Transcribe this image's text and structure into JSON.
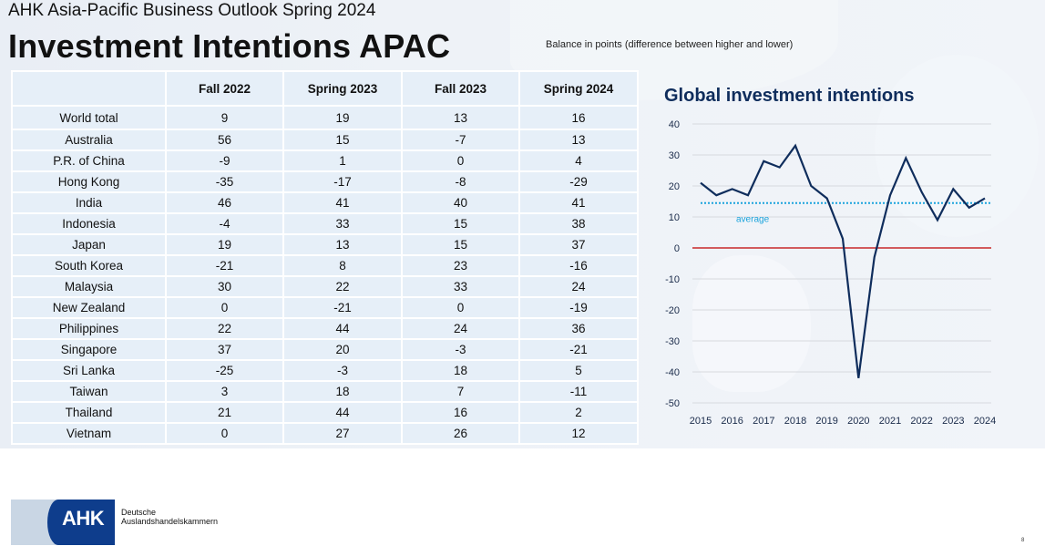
{
  "header": {
    "suptitle": "AHK Asia-Pacific Business Outlook Spring 2024",
    "title": "Investment Intentions APAC",
    "note": "Balance in points (difference between higher and lower)"
  },
  "table": {
    "columns": [
      "",
      "Fall 2022",
      "Spring 2023",
      "Fall 2023",
      "Spring 2024"
    ],
    "rows": [
      {
        "country": "World total",
        "values": [
          "9",
          "19",
          "13",
          "16"
        ]
      },
      {
        "country": "Australia",
        "values": [
          "56",
          "15",
          "-7",
          "13"
        ]
      },
      {
        "country": "P.R. of China",
        "values": [
          "-9",
          "1",
          "0",
          "4"
        ]
      },
      {
        "country": "Hong Kong",
        "values": [
          "-35",
          "-17",
          "-8",
          "-29"
        ]
      },
      {
        "country": "India",
        "values": [
          "46",
          "41",
          "40",
          "41"
        ]
      },
      {
        "country": "Indonesia",
        "values": [
          "-4",
          "33",
          "15",
          "38"
        ]
      },
      {
        "country": "Japan",
        "values": [
          "19",
          "13",
          "15",
          "37"
        ]
      },
      {
        "country": "South Korea",
        "values": [
          "-21",
          "8",
          "23",
          "-16"
        ]
      },
      {
        "country": "Malaysia",
        "values": [
          "30",
          "22",
          "33",
          "24"
        ]
      },
      {
        "country": "New Zealand",
        "values": [
          "0",
          "-21",
          "0",
          "-19"
        ]
      },
      {
        "country": "Philippines",
        "values": [
          "22",
          "44",
          "24",
          "36"
        ]
      },
      {
        "country": "Singapore",
        "values": [
          "37",
          "20",
          "-3",
          "-21"
        ]
      },
      {
        "country": "Sri Lanka",
        "values": [
          "-25",
          "-3",
          "18",
          "5"
        ]
      },
      {
        "country": "Taiwan",
        "values": [
          "3",
          "18",
          "7",
          "-11"
        ]
      },
      {
        "country": "Thailand",
        "values": [
          "21",
          "44",
          "16",
          "2"
        ]
      },
      {
        "country": "Vietnam",
        "values": [
          "0",
          "27",
          "26",
          "12"
        ]
      }
    ]
  },
  "chart_data": {
    "type": "line",
    "title": "Global investment intentions",
    "xlabel": "",
    "ylabel": "",
    "x_tick_labels": [
      "2015",
      "2016",
      "2017",
      "2018",
      "2019",
      "2020",
      "2021",
      "2022",
      "2023",
      "2024"
    ],
    "y_ticks": [
      40,
      30,
      20,
      10,
      0,
      -10,
      -20,
      -30,
      -40,
      -50
    ],
    "ylim": [
      -50,
      40
    ],
    "xlim": [
      2015,
      2024
    ],
    "grid": true,
    "series": [
      {
        "name": "Global investment intentions",
        "color": "#0f2d5c",
        "x": [
          2015,
          2015.5,
          2016,
          2016.5,
          2017,
          2017.5,
          2018,
          2018.5,
          2019,
          2019.5,
          2020,
          2020.5,
          2021,
          2021.5,
          2022,
          2022.5,
          2023,
          2023.5,
          2024
        ],
        "values": [
          21,
          17,
          19,
          17,
          28,
          26,
          33,
          20,
          16,
          3,
          -42,
          -3,
          17,
          29,
          18,
          9,
          19,
          13,
          16
        ]
      }
    ],
    "reference_lines": [
      {
        "name": "average",
        "value": 14.5,
        "color": "#1aa3dc",
        "style": "dotted",
        "label": "average"
      },
      {
        "name": "zero",
        "value": 0,
        "color": "#c00000",
        "style": "solid"
      }
    ]
  },
  "footer": {
    "logo_text": "AHK",
    "org_line1": "Deutsche",
    "org_line2": "Auslandshandelskammern",
    "page_number": "8"
  }
}
